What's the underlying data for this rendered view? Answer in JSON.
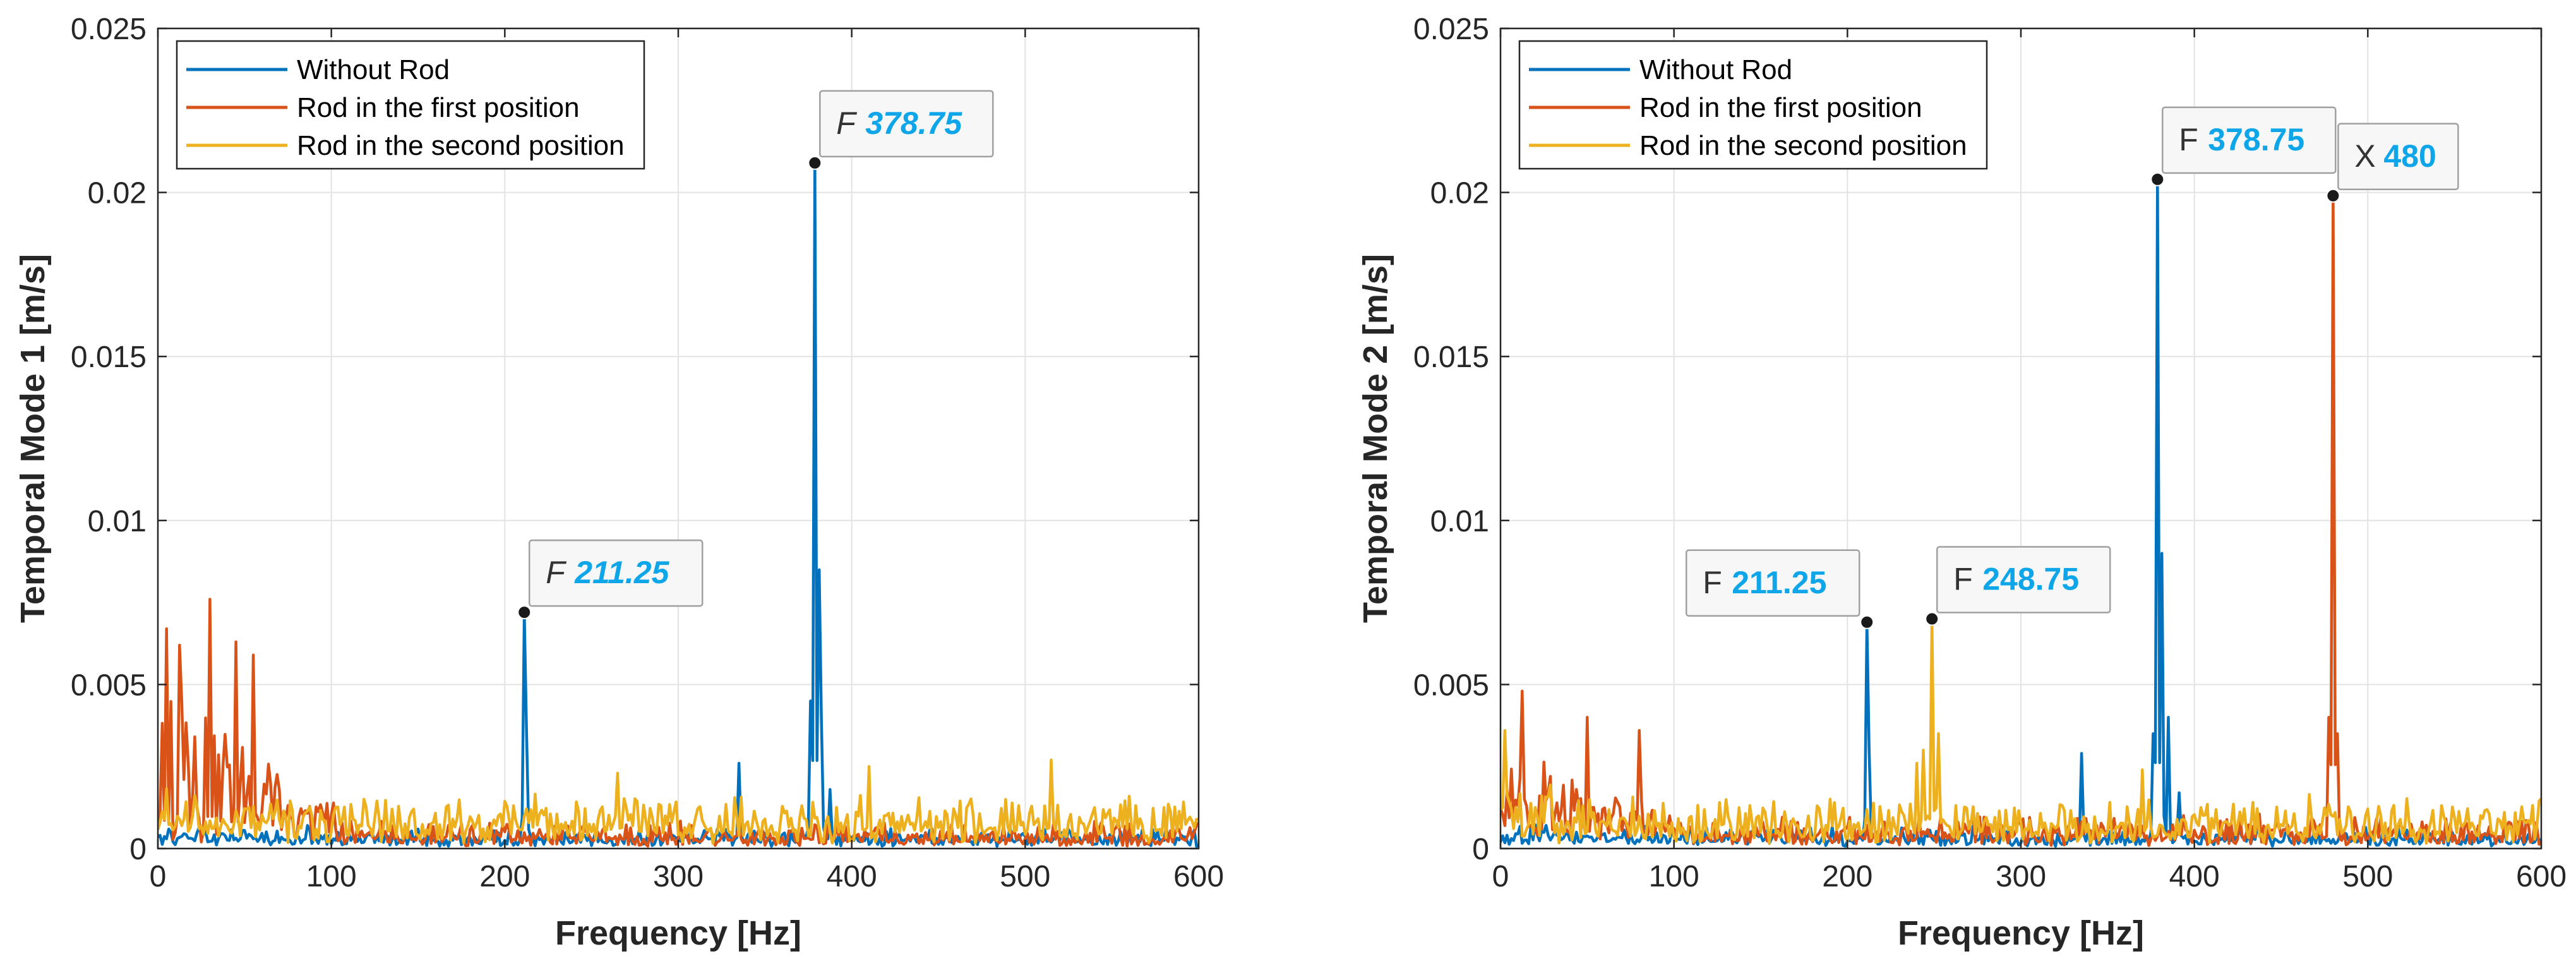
{
  "chart_data": [
    {
      "type": "line",
      "xlabel": "Frequency [Hz]",
      "ylabel": "Temporal Mode 1 [m/s]",
      "xlim": [
        0,
        600
      ],
      "ylim": [
        0,
        0.025
      ],
      "xticks": [
        0,
        100,
        200,
        300,
        400,
        500,
        600
      ],
      "yticks": [
        0,
        0.005,
        0.01,
        0.015,
        0.02,
        0.025
      ],
      "xtick_labels": [
        "0",
        "100",
        "200",
        "300",
        "400",
        "500",
        "600"
      ],
      "ytick_labels": [
        "0",
        "0.005",
        "0.01",
        "0.015",
        "0.02",
        "0.025"
      ],
      "grid": true,
      "legend_position": "top-left",
      "series": [
        {
          "name": "Without Rod",
          "color": "#0072BD",
          "noise_base": 0.0003,
          "noise_amp": 0.0004,
          "low_boost": 0.0002,
          "peaks": [
            [
              211.25,
              0.0072
            ],
            [
              213,
              0.0036
            ],
            [
              335,
              0.0026
            ],
            [
              376,
              0.0045
            ],
            [
              378.75,
              0.0209
            ],
            [
              381,
              0.0085
            ],
            [
              383,
              0.004
            ],
            [
              387,
              0.0018
            ]
          ]
        },
        {
          "name": "Rod in the first position",
          "color": "#D95319",
          "noise_base": 0.0003,
          "noise_amp": 0.0006,
          "low_boost": 0.0045,
          "peaks": [
            [
              5,
              0.0067
            ],
            [
              12,
              0.0062
            ],
            [
              30,
              0.0076
            ],
            [
              45,
              0.0063
            ],
            [
              55,
              0.0059
            ]
          ]
        },
        {
          "name": "Rod in the second position",
          "color": "#EDB120",
          "noise_base": 0.0007,
          "noise_amp": 0.0011,
          "low_boost": 0.0004,
          "peaks": [
            [
              265,
              0.0023
            ],
            [
              410,
              0.0025
            ],
            [
              515,
              0.0027
            ]
          ]
        }
      ],
      "datatips": [
        {
          "prefix": "F",
          "label": "211.25",
          "x": 211.25,
          "y": 0.0072,
          "italic": true,
          "box": "upper-right"
        },
        {
          "prefix": "F",
          "label": "378.75",
          "x": 378.75,
          "y": 0.0209,
          "italic": true,
          "box": "upper-right"
        }
      ],
      "seed": 7
    },
    {
      "type": "line",
      "xlabel": "Frequency [Hz]",
      "ylabel": "Temporal Mode 2 [m/s]",
      "xlim": [
        0,
        600
      ],
      "ylim": [
        0,
        0.025
      ],
      "xticks": [
        0,
        100,
        200,
        300,
        400,
        500,
        600
      ],
      "yticks": [
        0,
        0.005,
        0.01,
        0.015,
        0.02,
        0.025
      ],
      "xtick_labels": [
        "0",
        "100",
        "200",
        "300",
        "400",
        "500",
        "600"
      ],
      "ytick_labels": [
        "0",
        "0.005",
        "0.01",
        "0.015",
        "0.02",
        "0.025"
      ],
      "grid": true,
      "legend_position": "top-left",
      "series": [
        {
          "name": "Without Rod",
          "color": "#0072BD",
          "noise_base": 0.0003,
          "noise_amp": 0.0004,
          "low_boost": 0.0002,
          "peaks": [
            [
              211.25,
              0.0069
            ],
            [
              213,
              0.003
            ],
            [
              335,
              0.0029
            ],
            [
              376,
              0.0035
            ],
            [
              378.75,
              0.0204
            ],
            [
              381,
              0.009
            ],
            [
              385,
              0.004
            ],
            [
              391,
              0.0017
            ]
          ]
        },
        {
          "name": "Rod in the first position",
          "color": "#D95319",
          "noise_base": 0.0004,
          "noise_amp": 0.0007,
          "low_boost": 0.0022,
          "peaks": [
            [
              12,
              0.0048
            ],
            [
              50,
              0.004
            ],
            [
              80,
              0.0036
            ],
            [
              480,
              0.0199
            ],
            [
              478,
              0.004
            ],
            [
              482,
              0.0035
            ]
          ]
        },
        {
          "name": "Rod in the second position",
          "color": "#EDB120",
          "noise_base": 0.0006,
          "noise_amp": 0.0011,
          "low_boost": 0.0005,
          "peaks": [
            [
              3,
              0.0036
            ],
            [
              240,
              0.0026
            ],
            [
              244,
              0.003
            ],
            [
              248.75,
              0.007
            ],
            [
              252,
              0.0035
            ],
            [
              370,
              0.0024
            ]
          ]
        }
      ],
      "datatips": [
        {
          "prefix": "F",
          "label": "211.25",
          "x": 211.25,
          "y": 0.0069,
          "italic": false,
          "box": "upper-left"
        },
        {
          "prefix": "F",
          "label": "248.75",
          "x": 248.75,
          "y": 0.007,
          "italic": false,
          "box": "upper-right"
        },
        {
          "prefix": "F",
          "label": "378.75",
          "x": 378.75,
          "y": 0.0204,
          "italic": false,
          "box": "upper-right"
        },
        {
          "prefix": "X",
          "label": "480",
          "x": 480,
          "y": 0.0199,
          "italic": false,
          "box": "upper-right"
        }
      ],
      "seed": 13
    }
  ]
}
